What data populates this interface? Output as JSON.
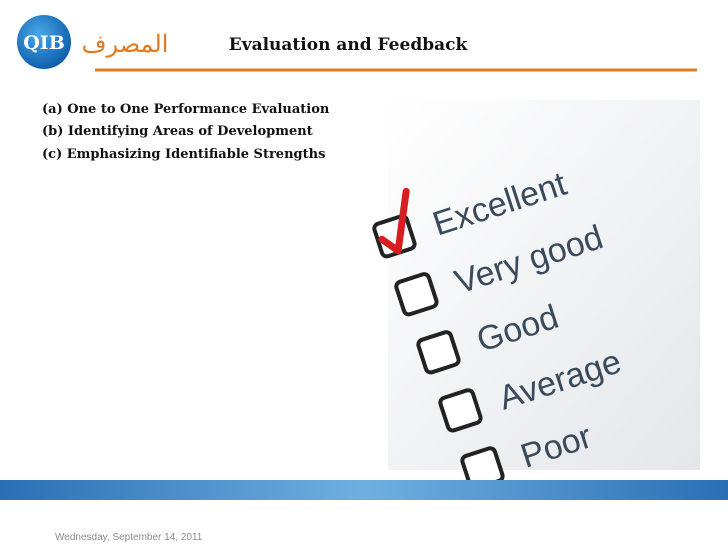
{
  "header": {
    "logo_text": "QIB",
    "logo_arabic": "المصرف",
    "title": "Evaluation and Feedback"
  },
  "items": [
    "(a) One to One Performance Evaluation",
    "(b) Identifying Areas of Development",
    "(c) Emphasizing Identifiable Strengths"
  ],
  "image": {
    "options": [
      "Excellent",
      "Very good",
      "Good",
      "Average",
      "Poor"
    ]
  },
  "footer": {
    "date": "Wednesday, September 14, 2011"
  }
}
